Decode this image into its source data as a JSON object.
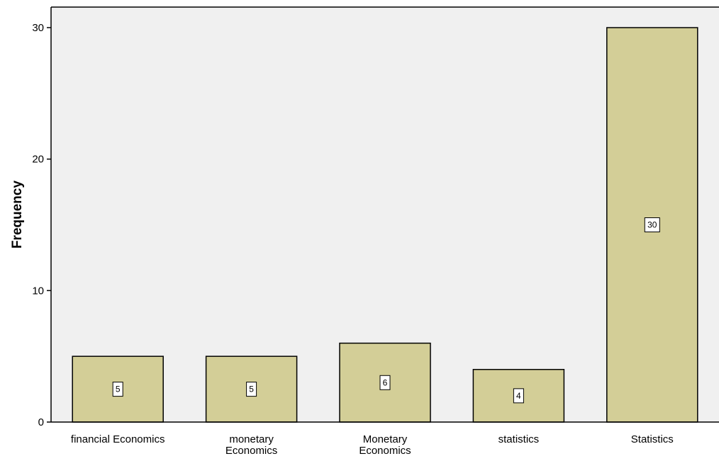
{
  "chart_data": {
    "type": "bar",
    "title": "",
    "xlabel": "",
    "ylabel": "Frequency",
    "categories": [
      [
        "financial Economics"
      ],
      [
        "monetary",
        "Economics"
      ],
      [
        "Monetary",
        "Economics"
      ],
      [
        "statistics"
      ],
      [
        "Statistics"
      ]
    ],
    "values": [
      5,
      5,
      6,
      4,
      30
    ],
    "data_labels": [
      "5",
      "5",
      "6",
      "4",
      "30"
    ],
    "ylim": [
      0,
      30
    ],
    "yticks": [
      0,
      10,
      20,
      30
    ],
    "grid": false,
    "legend": "none",
    "colors": {
      "plot_background": "#f0f0f0",
      "bar_fill": "#d3ce97",
      "bar_stroke": "#000000",
      "axis": "#000000",
      "label_box_fill": "#ffffff"
    }
  }
}
